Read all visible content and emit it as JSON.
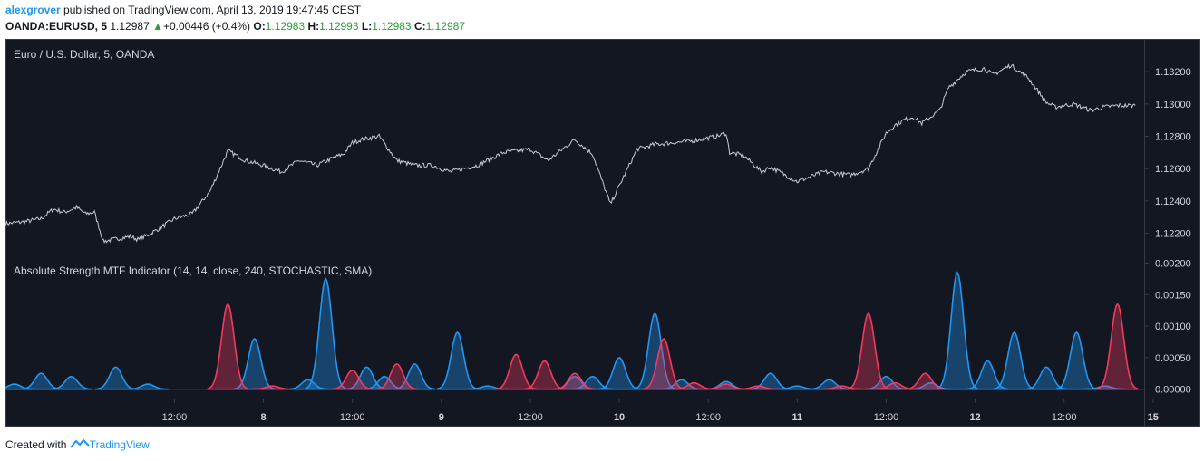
{
  "header": {
    "author": "alexgrover",
    "published_text": "published on TradingView.com, April 13, 2019 19:47:45 CEST",
    "symbol": "OANDA:EURUSD, 5",
    "last": "1.12987",
    "change": "+0.00446 (+0.4%)",
    "o_label": "O:",
    "o_value": "1.12983",
    "h_label": "H:",
    "h_value": "1.12993",
    "l_label": "L:",
    "l_value": "1.12983",
    "c_label": "C:",
    "c_value": "1.12987"
  },
  "footer": {
    "created_with": "Created with",
    "brand": "TradingView"
  },
  "colors": {
    "background": "#131722",
    "price_line": "#c8cbd3",
    "bull": "#2196f3",
    "bear": "#f23a5f",
    "axis_text": "#d1d4dc",
    "grid_border": "#363a45",
    "zero_line": "#2962ff"
  },
  "chart_data": [
    {
      "type": "line",
      "title": "Euro / U.S. Dollar, 5, OANDA",
      "ylim": [
        1.1208,
        1.1338
      ],
      "yticks": [
        "1.12200",
        "1.12400",
        "1.12600",
        "1.12800",
        "1.13000",
        "1.13200"
      ],
      "x_tick_labels": [
        "12:00",
        "8",
        "12:00",
        "9",
        "12:00",
        "10",
        "12:00",
        "11",
        "12:00",
        "12",
        "12:00",
        "15"
      ],
      "x_tick_positions": [
        0.5,
        1.0,
        1.5,
        2.0,
        2.5,
        3.0,
        3.5,
        4.0,
        4.5,
        5.0,
        5.5,
        6.0
      ],
      "x_range_days": [
        -0.45,
        5.95
      ],
      "series": [
        {
          "x": [
            -0.45,
            -0.35,
            -0.25,
            -0.18,
            -0.12,
            -0.05,
            0.0,
            0.05,
            0.1,
            0.15,
            0.2,
            0.25,
            0.3,
            0.35,
            0.4,
            0.5,
            0.6,
            0.7,
            0.8,
            0.9,
            1.0,
            1.1,
            1.2,
            1.3,
            1.4,
            1.45,
            1.5,
            1.55,
            1.6,
            1.65,
            1.75,
            1.85,
            1.95,
            2.05,
            2.2,
            2.35,
            2.5,
            2.6,
            2.75,
            2.85,
            2.95,
            3.1,
            3.2,
            3.3,
            3.4,
            3.45,
            3.55,
            3.6,
            3.62,
            3.7,
            3.8,
            3.85,
            4.0,
            4.15,
            4.3,
            4.4,
            4.5,
            4.55,
            4.6,
            4.65,
            4.7,
            4.8,
            4.85,
            4.95,
            5.05,
            5.1,
            5.2,
            5.3,
            5.4,
            5.45,
            5.55,
            5.65,
            5.72,
            5.8,
            5.9
          ],
          "y": [
            1.1226,
            1.1227,
            1.1229,
            1.1235,
            1.1233,
            1.1236,
            1.1232,
            1.1233,
            1.1215,
            1.1216,
            1.1217,
            1.1218,
            1.1216,
            1.1219,
            1.1222,
            1.1229,
            1.1232,
            1.1246,
            1.1271,
            1.1265,
            1.1262,
            1.1258,
            1.1265,
            1.1262,
            1.1267,
            1.1269,
            1.1276,
            1.1278,
            1.1279,
            1.128,
            1.1265,
            1.1262,
            1.1262,
            1.1258,
            1.1262,
            1.127,
            1.1272,
            1.1265,
            1.1278,
            1.1269,
            1.1238,
            1.1272,
            1.1275,
            1.1276,
            1.1277,
            1.1278,
            1.128,
            1.1282,
            1.127,
            1.1268,
            1.1258,
            1.1261,
            1.1252,
            1.1258,
            1.1256,
            1.126,
            1.1282,
            1.1287,
            1.129,
            1.1292,
            1.1288,
            1.1296,
            1.131,
            1.132,
            1.1322,
            1.1318,
            1.1324,
            1.1316,
            1.1301,
            1.1298,
            1.13,
            1.1296,
            1.1298,
            1.1299,
            1.1299
          ]
        }
      ]
    },
    {
      "type": "area",
      "title": "Absolute Strength MTF Indicator (14, 14, close, 240, STOCHASTIC, SMA)",
      "ylim": [
        -0.00012,
        0.00205
      ],
      "yticks": [
        "0.00000",
        "0.00050",
        "0.00100",
        "0.00150",
        "0.00200"
      ],
      "series": [
        {
          "name": "bulls",
          "color": "#2196f3",
          "x": [
            -0.4,
            -0.25,
            -0.08,
            0.17,
            0.35,
            0.95,
            1.25,
            1.35,
            1.58,
            1.68,
            1.85,
            2.09,
            2.26,
            2.75,
            2.85,
            3.0,
            3.2,
            3.35,
            3.6,
            3.85,
            4.0,
            4.18,
            4.5,
            4.75,
            4.9,
            5.07,
            5.22,
            5.4,
            5.57,
            5.73
          ],
          "y": [
            8e-05,
            0.00025,
            0.0002,
            0.00035,
            8e-05,
            0.0008,
            0.00015,
            0.00175,
            0.00035,
            0.0002,
            0.0004,
            0.0009,
            5e-05,
            0.0002,
            0.0002,
            0.0005,
            0.0012,
            0.00015,
            0.00012,
            0.00025,
            5e-05,
            0.00015,
            0.0002,
            0.0001,
            0.00185,
            0.00045,
            0.0009,
            0.00035,
            0.0009,
            5e-05
          ]
        },
        {
          "name": "bears",
          "color": "#f23a5f",
          "x": [
            0.8,
            1.05,
            1.5,
            1.75,
            2.42,
            2.58,
            2.75,
            3.25,
            3.42,
            3.6,
            3.78,
            4.25,
            4.4,
            4.55,
            4.72,
            5.8
          ],
          "y": [
            0.00135,
            5e-05,
            0.0003,
            0.0004,
            0.00055,
            0.00045,
            0.00025,
            0.0008,
            0.0001,
            8e-05,
            5e-05,
            5e-05,
            0.0012,
            0.0001,
            0.00025,
            0.00135
          ]
        }
      ]
    }
  ]
}
